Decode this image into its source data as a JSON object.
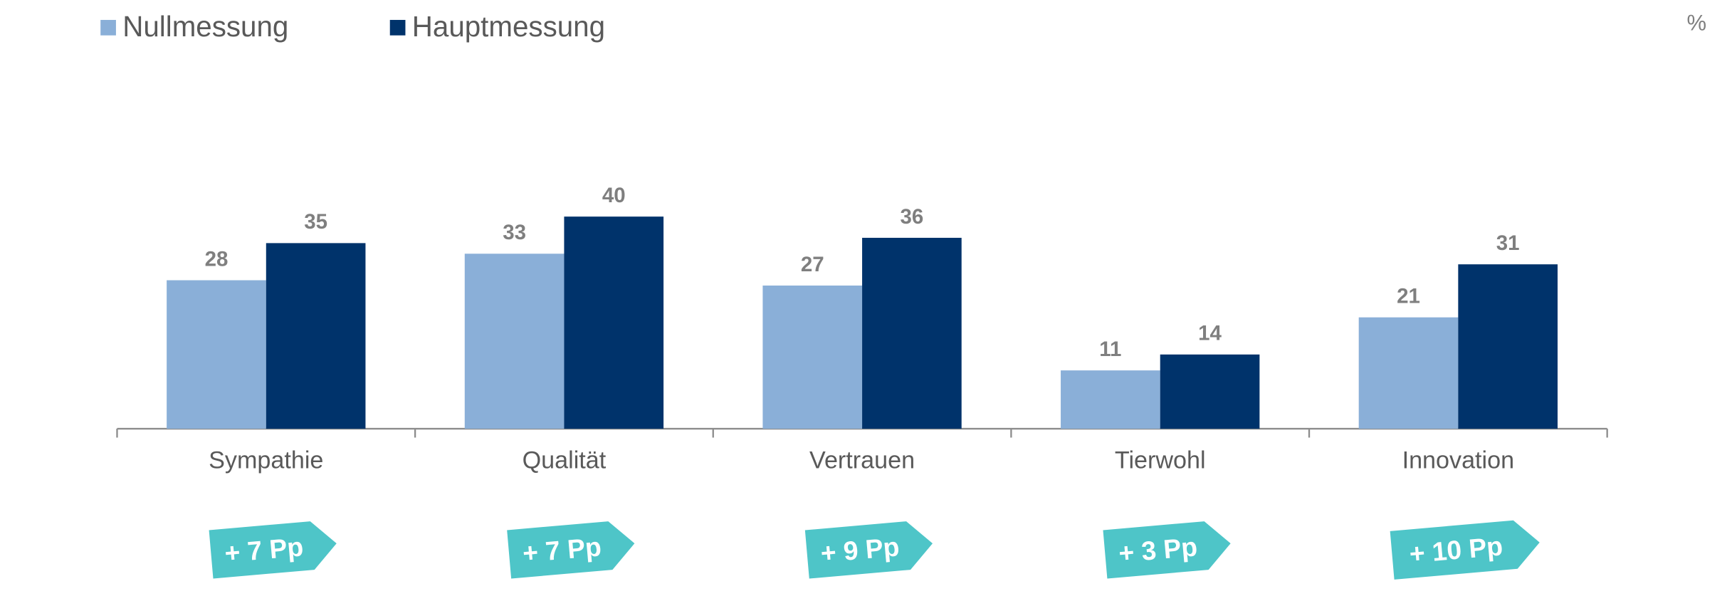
{
  "chart_data": {
    "type": "bar",
    "unit_label": "%",
    "categories": [
      "Sympathie",
      "Qualität",
      "Vertrauen",
      "Tierwohl",
      "Innovation"
    ],
    "series": [
      {
        "name": "Nullmessung",
        "color": "#8aafd8",
        "values": [
          28,
          33,
          27,
          11,
          21
        ]
      },
      {
        "name": "Hauptmessung",
        "color": "#00336b",
        "values": [
          35,
          40,
          36,
          14,
          31
        ]
      }
    ],
    "annotations": [
      "+ 7 Pp",
      "+ 7 Pp",
      "+ 9 Pp",
      "+ 3 Pp",
      "+ 10 Pp"
    ],
    "annotation_color": "#4ec5c8"
  }
}
